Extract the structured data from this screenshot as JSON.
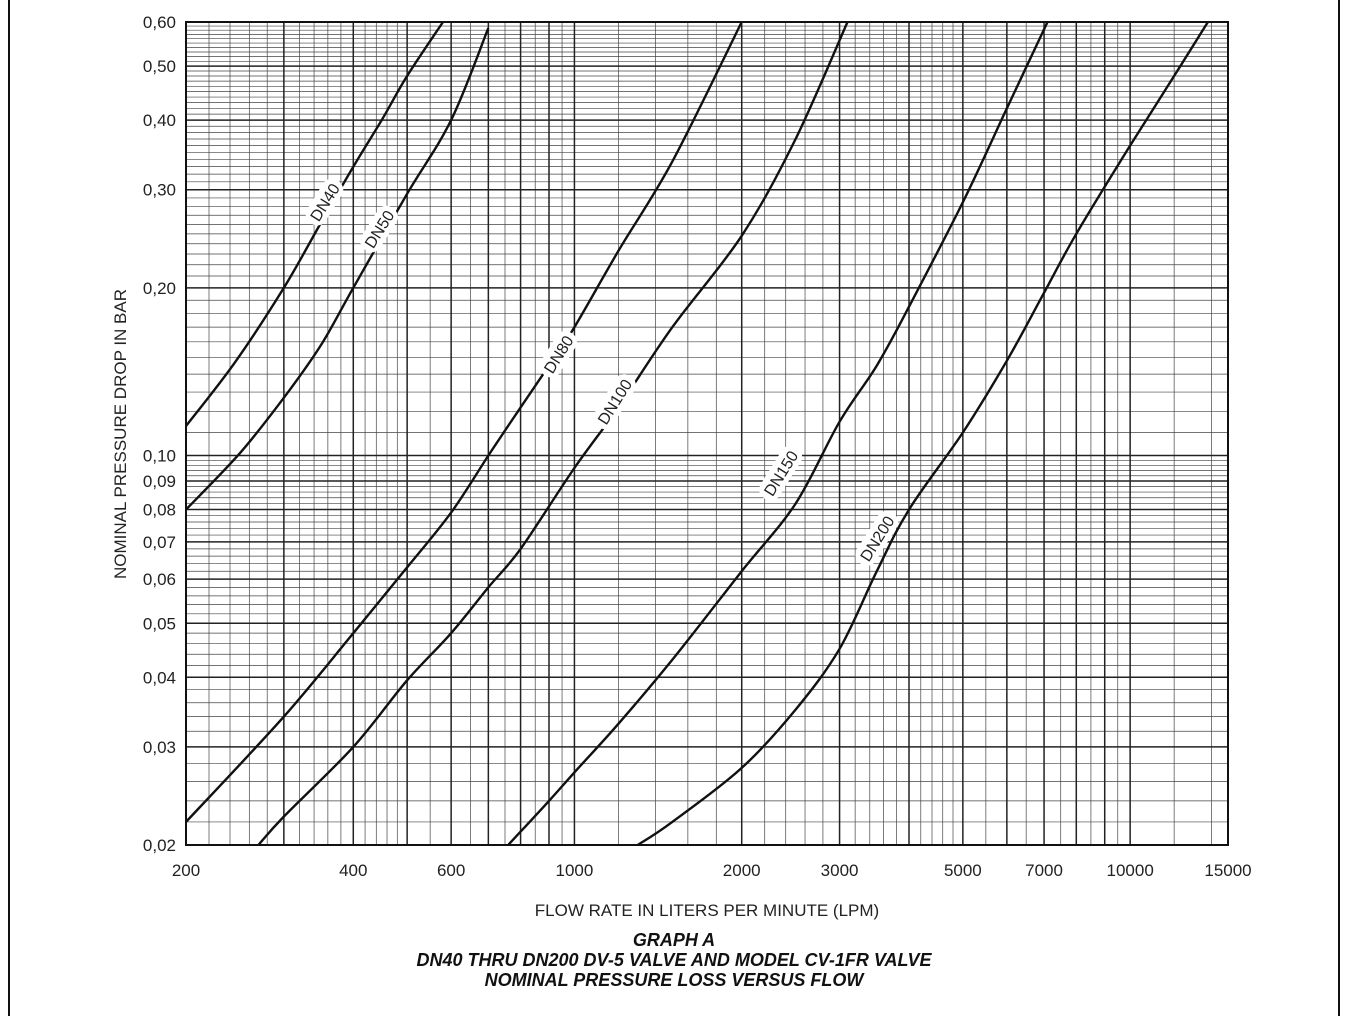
{
  "chart_data": {
    "type": "line",
    "xlabel": "FLOW RATE IN LITERS PER MINUTE (LPM)",
    "ylabel": "NOMINAL PRESSURE DROP IN BAR",
    "xscale": "log",
    "yscale": "log",
    "xlim": [
      200,
      15000
    ],
    "ylim": [
      0.02,
      0.6
    ],
    "grid": true,
    "x_ticks": [
      {
        "value": 200,
        "label": "200"
      },
      {
        "value": 400,
        "label": "400"
      },
      {
        "value": 600,
        "label": "600"
      },
      {
        "value": 1000,
        "label": "1000"
      },
      {
        "value": 2000,
        "label": "2000"
      },
      {
        "value": 3000,
        "label": "3000"
      },
      {
        "value": 5000,
        "label": "5000"
      },
      {
        "value": 7000,
        "label": "7000"
      },
      {
        "value": 10000,
        "label": "10000"
      },
      {
        "value": 15000,
        "label": "15000"
      }
    ],
    "y_ticks": [
      {
        "value": 0.02,
        "label": "0,02"
      },
      {
        "value": 0.03,
        "label": "0,03"
      },
      {
        "value": 0.04,
        "label": "0,04"
      },
      {
        "value": 0.05,
        "label": "0,05"
      },
      {
        "value": 0.06,
        "label": "0,06"
      },
      {
        "value": 0.07,
        "label": "0,07"
      },
      {
        "value": 0.08,
        "label": "0,08"
      },
      {
        "value": 0.09,
        "label": "0,09"
      },
      {
        "value": 0.1,
        "label": "0,10"
      },
      {
        "value": 0.2,
        "label": "0,20"
      },
      {
        "value": 0.3,
        "label": "0,30"
      },
      {
        "value": 0.4,
        "label": "0,40"
      },
      {
        "value": 0.5,
        "label": "0,50"
      },
      {
        "value": 0.6,
        "label": "0,60"
      }
    ],
    "series": [
      {
        "name": "DN40",
        "x": [
          200,
          245,
          300,
          350,
          400,
          450,
          500,
          580
        ],
        "y": [
          0.113,
          0.147,
          0.2,
          0.262,
          0.33,
          0.4,
          0.48,
          0.6
        ]
      },
      {
        "name": "DN50",
        "x": [
          200,
          250,
          300,
          350,
          400,
          500,
          600,
          700
        ],
        "y": [
          0.08,
          0.101,
          0.127,
          0.158,
          0.2,
          0.295,
          0.4,
          0.585
        ]
      },
      {
        "name": "DN80",
        "x": [
          200,
          300,
          400,
          500,
          600,
          700,
          800,
          900,
          1000,
          1200,
          1500,
          2000
        ],
        "y": [
          0.022,
          0.034,
          0.048,
          0.063,
          0.079,
          0.1,
          0.122,
          0.145,
          0.17,
          0.233,
          0.337,
          0.6
        ]
      },
      {
        "name": "DN100",
        "x": [
          270,
          300,
          400,
          500,
          600,
          700,
          800,
          1000,
          1200,
          1500,
          2000,
          2500,
          3100
        ],
        "y": [
          0.02,
          0.0225,
          0.03,
          0.0395,
          0.048,
          0.058,
          0.068,
          0.095,
          0.122,
          0.17,
          0.248,
          0.37,
          0.6
        ]
      },
      {
        "name": "DN150",
        "x": [
          760,
          900,
          1000,
          1200,
          1500,
          2000,
          2500,
          3000,
          3500,
          4000,
          5000,
          6000,
          7100
        ],
        "y": [
          0.02,
          0.024,
          0.027,
          0.033,
          0.043,
          0.062,
          0.082,
          0.115,
          0.145,
          0.185,
          0.285,
          0.42,
          0.6
        ]
      },
      {
        "name": "DN200",
        "x": [
          1300,
          1500,
          2000,
          2500,
          3000,
          3500,
          4000,
          5000,
          6000,
          7000,
          8000,
          10000,
          12000,
          13800
        ],
        "y": [
          0.02,
          0.022,
          0.0275,
          0.035,
          0.045,
          0.062,
          0.08,
          0.11,
          0.148,
          0.196,
          0.25,
          0.36,
          0.48,
          0.6
        ]
      }
    ]
  },
  "caption": {
    "line1": "GRAPH A",
    "line2": "DN40 THRU DN200 DV-5 VALVE AND MODEL CV-1FR VALVE",
    "line3": "NOMINAL PRESSURE LOSS VERSUS FLOW"
  }
}
